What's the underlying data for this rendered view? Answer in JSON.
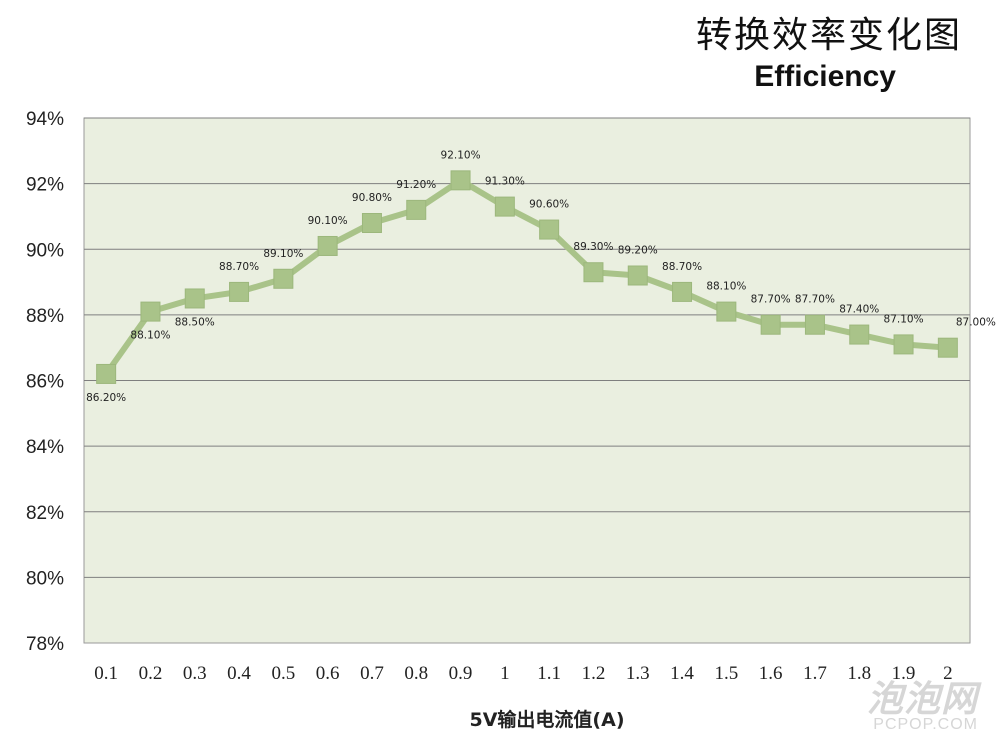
{
  "title": "转换效率变化图",
  "subtitle": "Efficiency",
  "watermark": {
    "line1": "泡泡网",
    "line2": "PCPOP.COM"
  },
  "chart_data": {
    "type": "line",
    "title": "转换效率变化图",
    "subtitle": "Efficiency",
    "xlabel": "5V输出电流值(A)",
    "ylabel": "",
    "categories": [
      "0.1",
      "0.2",
      "0.3",
      "0.4",
      "0.5",
      "0.6",
      "0.7",
      "0.8",
      "0.9",
      "1",
      "1.1",
      "1.2",
      "1.3",
      "1.4",
      "1.5",
      "1.6",
      "1.7",
      "1.8",
      "1.9",
      "2"
    ],
    "series": [
      {
        "values": [
          86.2,
          88.1,
          88.5,
          88.7,
          89.1,
          90.1,
          90.8,
          91.2,
          92.1,
          91.3,
          90.6,
          89.3,
          89.2,
          88.7,
          88.1,
          87.7,
          87.7,
          87.4,
          87.1,
          87.0
        ],
        "labels": [
          "86.20%",
          "88.10%",
          "88.50%",
          "88.70%",
          "89.10%",
          "90.10%",
          "90.80%",
          "91.20%",
          "92.10%",
          "91.30%",
          "90.60%",
          "89.30%",
          "89.20%",
          "88.70%",
          "88.10%",
          "87.70%",
          "87.70%",
          "87.40%",
          "87.10%",
          "87.00%"
        ],
        "color": "#a9c389"
      }
    ],
    "ylim": [
      78,
      94
    ],
    "yticks": [
      "78%",
      "80%",
      "82%",
      "84%",
      "86%",
      "88%",
      "90%",
      "92%",
      "94%"
    ],
    "grid": true,
    "plot_background": "#eaefe0",
    "grid_color": "#7f7f7f"
  }
}
